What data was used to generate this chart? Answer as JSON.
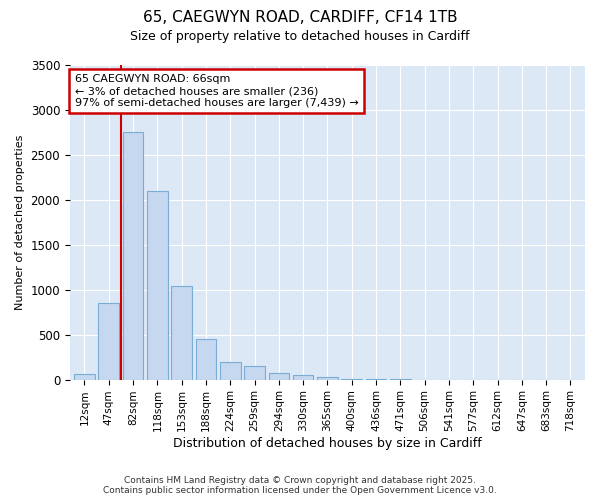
{
  "title_line1": "65, CAEGWYN ROAD, CARDIFF, CF14 1TB",
  "title_line2": "Size of property relative to detached houses in Cardiff",
  "xlabel": "Distribution of detached houses by size in Cardiff",
  "ylabel": "Number of detached properties",
  "categories": [
    "12sqm",
    "47sqm",
    "82sqm",
    "118sqm",
    "153sqm",
    "188sqm",
    "224sqm",
    "259sqm",
    "294sqm",
    "330sqm",
    "365sqm",
    "400sqm",
    "436sqm",
    "471sqm",
    "506sqm",
    "541sqm",
    "577sqm",
    "612sqm",
    "647sqm",
    "683sqm",
    "718sqm"
  ],
  "values": [
    60,
    850,
    2750,
    2100,
    1040,
    450,
    200,
    150,
    75,
    50,
    25,
    10,
    5,
    2,
    0,
    0,
    0,
    0,
    0,
    0,
    0
  ],
  "bar_color": "#c5d8ef",
  "bar_edge_color": "#7aadd4",
  "vline_x": 1.5,
  "vline_color": "#cc0000",
  "annotation_title": "65 CAEGWYN ROAD: 66sqm",
  "annotation_line1": "← 3% of detached houses are smaller (236)",
  "annotation_line2": "97% of semi-detached houses are larger (7,439) →",
  "annotation_box_color": "#ffffff",
  "annotation_box_edge": "#cc0000",
  "ylim": [
    0,
    3500
  ],
  "yticks": [
    0,
    500,
    1000,
    1500,
    2000,
    2500,
    3000,
    3500
  ],
  "plot_bg_color": "#dce8f5",
  "fig_bg_color": "#ffffff",
  "footnote1": "Contains HM Land Registry data © Crown copyright and database right 2025.",
  "footnote2": "Contains public sector information licensed under the Open Government Licence v3.0."
}
